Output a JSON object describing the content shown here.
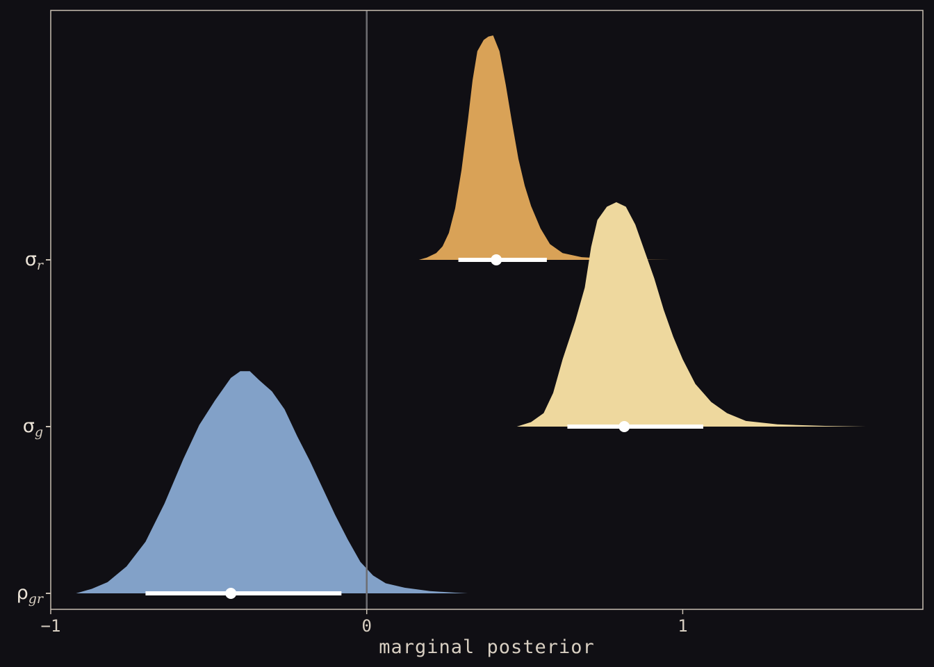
{
  "chart_data": {
    "type": "density",
    "xlabel": "marginal posterior",
    "xlim": [
      -1.0,
      1.76
    ],
    "x_ticks": [
      {
        "value": -1,
        "label": "−1"
      },
      {
        "value": 0,
        "label": "0"
      },
      {
        "value": 1,
        "label": "1"
      }
    ],
    "reference_line_x": 0,
    "background_color": "#100f14",
    "panel_border_color": "#c8bfb2",
    "reference_line_color": "#6e6e72",
    "interval_color": "#ffffff",
    "series": [
      {
        "symbol": "σ",
        "subscript": "r",
        "color": "#d9a257",
        "point_estimate": 0.41,
        "interval": [
          0.29,
          0.57
        ],
        "density": [
          [
            0.165,
            0.0
          ],
          [
            0.19,
            0.01
          ],
          [
            0.22,
            0.03
          ],
          [
            0.24,
            0.06
          ],
          [
            0.26,
            0.12
          ],
          [
            0.28,
            0.23
          ],
          [
            0.3,
            0.4
          ],
          [
            0.32,
            0.62
          ],
          [
            0.335,
            0.8
          ],
          [
            0.35,
            0.93
          ],
          [
            0.37,
            0.98
          ],
          [
            0.385,
            0.995
          ],
          [
            0.4,
            1.0
          ],
          [
            0.42,
            0.93
          ],
          [
            0.44,
            0.78
          ],
          [
            0.46,
            0.61
          ],
          [
            0.48,
            0.45
          ],
          [
            0.5,
            0.33
          ],
          [
            0.52,
            0.24
          ],
          [
            0.55,
            0.14
          ],
          [
            0.58,
            0.07
          ],
          [
            0.62,
            0.03
          ],
          [
            0.68,
            0.012
          ],
          [
            0.78,
            0.004
          ],
          [
            0.9,
            0.001
          ],
          [
            0.96,
            0.0
          ]
        ]
      },
      {
        "symbol": "σ",
        "subscript": "g",
        "color": "#eed89e",
        "point_estimate": 0.815,
        "interval": [
          0.635,
          1.065
        ],
        "density": [
          [
            0.475,
            0.0
          ],
          [
            0.52,
            0.02
          ],
          [
            0.56,
            0.06
          ],
          [
            0.59,
            0.15
          ],
          [
            0.62,
            0.3
          ],
          [
            0.66,
            0.47
          ],
          [
            0.69,
            0.62
          ],
          [
            0.71,
            0.8
          ],
          [
            0.73,
            0.92
          ],
          [
            0.76,
            0.98
          ],
          [
            0.79,
            1.0
          ],
          [
            0.82,
            0.98
          ],
          [
            0.85,
            0.9
          ],
          [
            0.88,
            0.78
          ],
          [
            0.91,
            0.66
          ],
          [
            0.94,
            0.52
          ],
          [
            0.97,
            0.4
          ],
          [
            1.0,
            0.3
          ],
          [
            1.04,
            0.19
          ],
          [
            1.09,
            0.11
          ],
          [
            1.14,
            0.06
          ],
          [
            1.2,
            0.025
          ],
          [
            1.3,
            0.01
          ],
          [
            1.45,
            0.003
          ],
          [
            1.58,
            0.0
          ]
        ]
      },
      {
        "symbol": "ρ",
        "subscript": "gr",
        "color": "#82a1c8",
        "point_estimate": -0.43,
        "interval": [
          -0.7,
          -0.08
        ],
        "density": [
          [
            -0.92,
            0.0
          ],
          [
            -0.87,
            0.02
          ],
          [
            -0.82,
            0.05
          ],
          [
            -0.76,
            0.12
          ],
          [
            -0.7,
            0.23
          ],
          [
            -0.64,
            0.4
          ],
          [
            -0.58,
            0.6
          ],
          [
            -0.53,
            0.75
          ],
          [
            -0.48,
            0.86
          ],
          [
            -0.43,
            0.96
          ],
          [
            -0.4,
            0.99
          ],
          [
            -0.37,
            0.99
          ],
          [
            -0.34,
            0.95
          ],
          [
            -0.3,
            0.9
          ],
          [
            -0.26,
            0.82
          ],
          [
            -0.22,
            0.7
          ],
          [
            -0.18,
            0.59
          ],
          [
            -0.14,
            0.47
          ],
          [
            -0.1,
            0.35
          ],
          [
            -0.06,
            0.24
          ],
          [
            -0.02,
            0.14
          ],
          [
            0.02,
            0.08
          ],
          [
            0.06,
            0.045
          ],
          [
            0.12,
            0.025
          ],
          [
            0.2,
            0.01
          ],
          [
            0.28,
            0.003
          ],
          [
            0.32,
            0.0
          ]
        ]
      }
    ]
  }
}
